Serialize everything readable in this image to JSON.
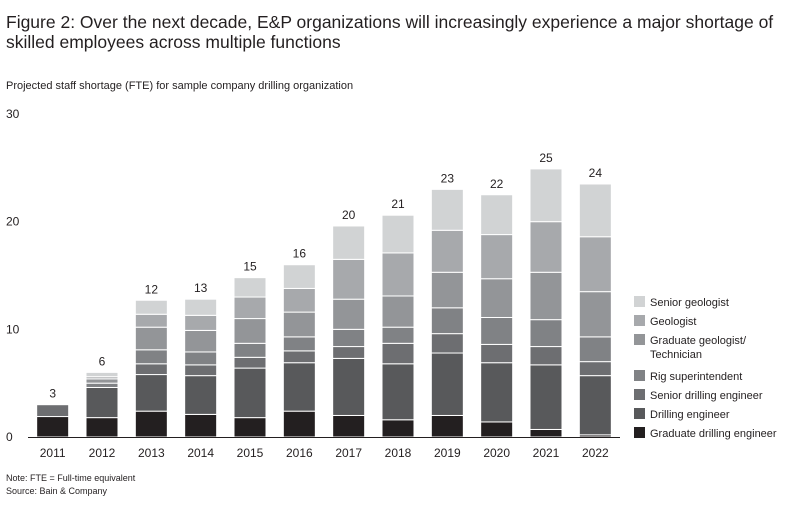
{
  "title": "Figure 2: Over the next decade, E&P organizations will increasingly experience a major shortage of skilled employees across multiple functions",
  "subtitle": "Projected staff shortage (FTE) for sample company drilling organization",
  "note": "Note: FTE = Full-time equivalent",
  "source": "Source: Bain & Company",
  "chart_data": {
    "type": "bar",
    "stacked": true,
    "ylim": [
      0,
      30
    ],
    "yticks": [
      0,
      10,
      20,
      30
    ],
    "grid": false,
    "legend_position": "right",
    "categories": [
      "2011",
      "2012",
      "2013",
      "2014",
      "2015",
      "2016",
      "2017",
      "2018",
      "2019",
      "2020",
      "2021",
      "2022"
    ],
    "totals": [
      3,
      6,
      12,
      13,
      15,
      16,
      20,
      21,
      23,
      22,
      25,
      24
    ],
    "series": [
      {
        "name": "Graduate drilling engineer",
        "color": "#231f20",
        "values": [
          1.9,
          1.8,
          2.4,
          2.1,
          1.8,
          2.4,
          2.0,
          1.6,
          2.0,
          1.4,
          0.7,
          0.2
        ]
      },
      {
        "name": "Drilling engineer",
        "color": "#58595b",
        "values": [
          0.0,
          2.8,
          3.4,
          3.6,
          4.6,
          4.5,
          5.3,
          5.2,
          5.8,
          5.5,
          6.0,
          5.5
        ]
      },
      {
        "name": "Senior drilling engineer",
        "color": "#6d6e71",
        "values": [
          1.1,
          0.0,
          1.0,
          1.0,
          1.0,
          1.1,
          1.1,
          1.9,
          1.8,
          1.7,
          1.7,
          1.3
        ]
      },
      {
        "name": "Rig superintendent",
        "color": "#808285",
        "values": [
          0.0,
          0.4,
          1.3,
          1.2,
          1.3,
          1.3,
          1.6,
          1.5,
          2.4,
          2.5,
          2.5,
          2.3
        ]
      },
      {
        "name": "Graduate geologist/ Technician",
        "color": "#939598",
        "values": [
          0.0,
          0.4,
          2.1,
          2.0,
          2.3,
          2.3,
          2.8,
          2.9,
          3.3,
          3.6,
          4.4,
          4.2
        ]
      },
      {
        "name": "Geologist",
        "color": "#a7a9ac",
        "values": [
          0.0,
          0.2,
          1.2,
          1.4,
          2.0,
          2.2,
          3.7,
          4.0,
          3.9,
          4.1,
          4.7,
          5.1
        ]
      },
      {
        "name": "Senior geologist",
        "color": "#d1d3d4",
        "values": [
          0.0,
          0.4,
          1.3,
          1.5,
          1.8,
          2.2,
          3.1,
          3.5,
          3.8,
          3.7,
          4.9,
          4.9
        ]
      }
    ]
  }
}
